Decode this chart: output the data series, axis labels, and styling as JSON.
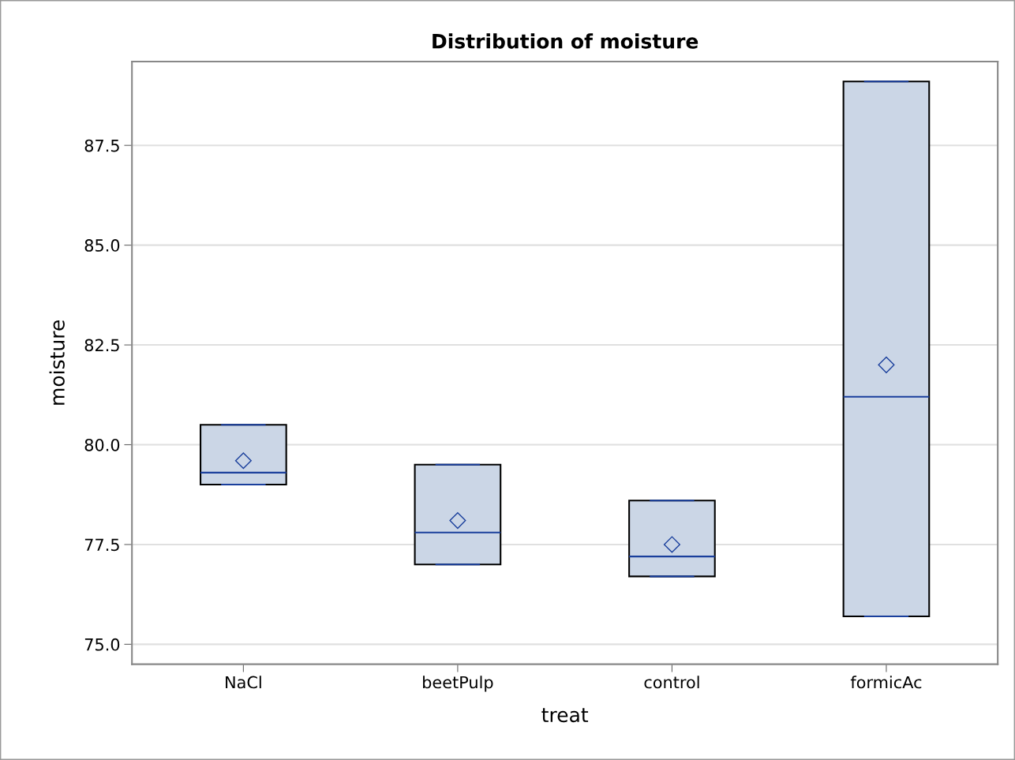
{
  "chart_data": {
    "type": "box",
    "title": "Distribution of moisture",
    "xlabel": "treat",
    "ylabel": "moisture",
    "categories": [
      "NaCl",
      "beetPulp",
      "control",
      "formicAc"
    ],
    "boxes": [
      {
        "low": 79.0,
        "q1": 79.0,
        "median": 79.3,
        "q3": 80.5,
        "high": 80.5,
        "mean": 79.6
      },
      {
        "low": 77.0,
        "q1": 77.0,
        "median": 77.8,
        "q3": 79.5,
        "high": 79.5,
        "mean": 78.1
      },
      {
        "low": 76.7,
        "q1": 76.7,
        "median": 77.2,
        "q3": 78.6,
        "high": 78.6,
        "mean": 77.5
      },
      {
        "low": 75.7,
        "q1": 75.7,
        "median": 81.2,
        "q3": 89.1,
        "high": 89.1,
        "mean": 82.0
      }
    ],
    "color": "#cbd6e6",
    "marker": "diamond",
    "ylim": [
      74.5,
      89.6
    ],
    "yticks": [
      {
        "value": 75,
        "label": "75.0"
      },
      77.5,
      {
        "value": 80,
        "label": "80.0"
      },
      82.5,
      {
        "value": 85,
        "label": "85.0"
      },
      87.5
    ],
    "grid": "y"
  }
}
